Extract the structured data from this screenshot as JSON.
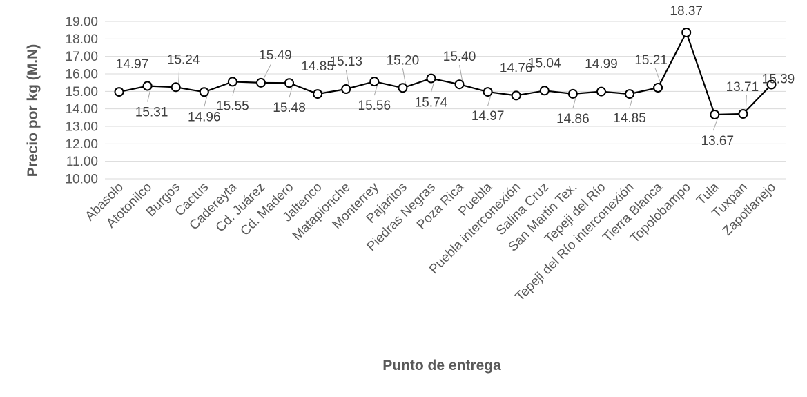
{
  "chart_data": {
    "type": "line",
    "title": "",
    "xlabel": "Punto de entrega",
    "ylabel": "Precio por kg (M.N)",
    "ylim": [
      10,
      19
    ],
    "ytick_step": 1,
    "ytick_labels": [
      "10.00",
      "11.00",
      "12.00",
      "13.00",
      "14.00",
      "15.00",
      "16.00",
      "17.00",
      "18.00",
      "19.00"
    ],
    "grid": true,
    "legend": "none",
    "line_color": "#000000",
    "marker_fill": "#ffffff",
    "grid_color": "#d9d9d9",
    "leader_color": "#a6a6a6",
    "categories": [
      "Abasolo",
      "Atotonilco",
      "Burgos",
      "Cactus",
      "Cadereyta",
      "Cd. Juárez",
      "Cd. Madero",
      "Jaltenco",
      "Matapionche",
      "Monterrey",
      "Pajaritos",
      "Piedras Negras",
      "Poza Rica",
      "Puebla",
      "Puebla interconexión",
      "Salina Cruz",
      "San Martin Tex.",
      "Tepeji del Río",
      "Tepeji del Río interconexión",
      "Tierra Blanca",
      "Topolobampo",
      "Tula",
      "Tuxpan",
      "Zapotlanejo"
    ],
    "values": [
      14.97,
      15.31,
      15.24,
      14.96,
      15.55,
      15.49,
      15.48,
      14.85,
      15.13,
      15.56,
      15.2,
      15.74,
      15.4,
      14.97,
      14.76,
      15.04,
      14.86,
      14.99,
      14.85,
      15.21,
      18.37,
      13.67,
      13.71,
      15.39
    ],
    "data_labels": [
      "14.97",
      "15.31",
      "15.24",
      "14.96",
      "15.55",
      "15.49",
      "15.48",
      "14.85",
      "15.13",
      "15.56",
      "15.20",
      "15.74",
      "15.40",
      "14.97",
      "14.76",
      "15.04",
      "14.86",
      "14.99",
      "14.85",
      "15.21",
      "18.37",
      "13.67",
      "13.71",
      "15.39"
    ]
  }
}
